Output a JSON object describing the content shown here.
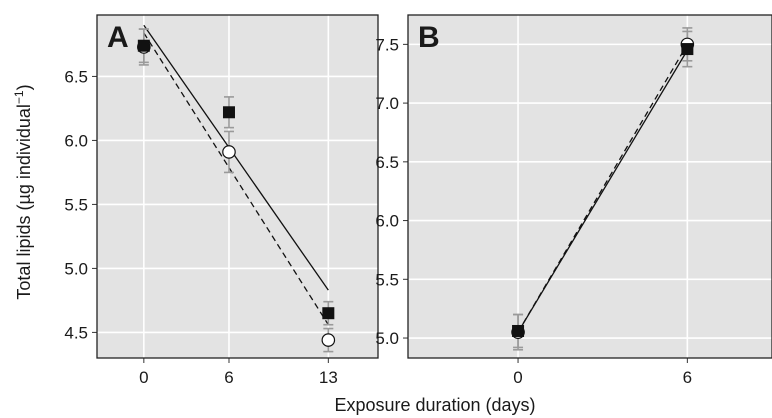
{
  "chart_data": [
    {
      "type": "scatter",
      "title": "A",
      "xlabel": "Exposure duration (days)",
      "ylabel": "Total lipids (µg individual⁻¹)",
      "ylabel_main": "Total lipids (µg individual",
      "ylabel_sup": "−1",
      "ylabel_close": ")",
      "x_ticks": [
        0,
        6,
        13
      ],
      "y_ticks": [
        "4.5",
        "5.0",
        "5.5",
        "6.0",
        "6.5"
      ],
      "x_range": [
        -3.3,
        16.5
      ],
      "y_range": [
        4.3,
        6.98
      ],
      "grid": true,
      "series": [
        {
          "marker": "filled-square",
          "points": [
            {
              "x": 0,
              "y": 6.74,
              "err": 0.13
            },
            {
              "x": 6,
              "y": 6.22,
              "err": 0.12
            },
            {
              "x": 13,
              "y": 4.65,
              "err": 0.09
            }
          ],
          "fit": {
            "style": "solid",
            "from": [
              0,
              6.9
            ],
            "to": [
              13,
              4.83
            ]
          }
        },
        {
          "marker": "open-circle",
          "points": [
            {
              "x": 0,
              "y": 6.73,
              "err": 0.14
            },
            {
              "x": 6,
              "y": 5.91,
              "err": 0.16
            },
            {
              "x": 13,
              "y": 4.44,
              "err": 0.09
            }
          ],
          "fit": {
            "style": "dashed",
            "from": [
              0,
              6.84
            ],
            "to": [
              13,
              4.56
            ]
          }
        }
      ]
    },
    {
      "type": "scatter",
      "title": "B",
      "xlabel": "Exposure duration (days)",
      "x_ticks": [
        0,
        6
      ],
      "y_ticks": [
        "5.0",
        "5.5",
        "6.0",
        "6.5",
        "7.0",
        "7.5"
      ],
      "x_range": [
        -3.9,
        9.0
      ],
      "y_range": [
        4.83,
        7.75
      ],
      "grid": true,
      "series": [
        {
          "marker": "filled-square",
          "points": [
            {
              "x": 0,
              "y": 5.06,
              "err": 0.14
            },
            {
              "x": 6,
              "y": 7.46,
              "err": 0.15
            }
          ],
          "fit": {
            "style": "solid",
            "from": [
              0,
              5.05
            ],
            "to": [
              6,
              7.45
            ]
          }
        },
        {
          "marker": "open-circle",
          "points": [
            {
              "x": 0,
              "y": 5.05,
              "err": 0.15
            },
            {
              "x": 6,
              "y": 7.5,
              "err": 0.14
            }
          ],
          "fit": {
            "style": "dashed",
            "from": [
              0,
              5.05
            ],
            "to": [
              6,
              7.5
            ]
          }
        }
      ]
    }
  ]
}
